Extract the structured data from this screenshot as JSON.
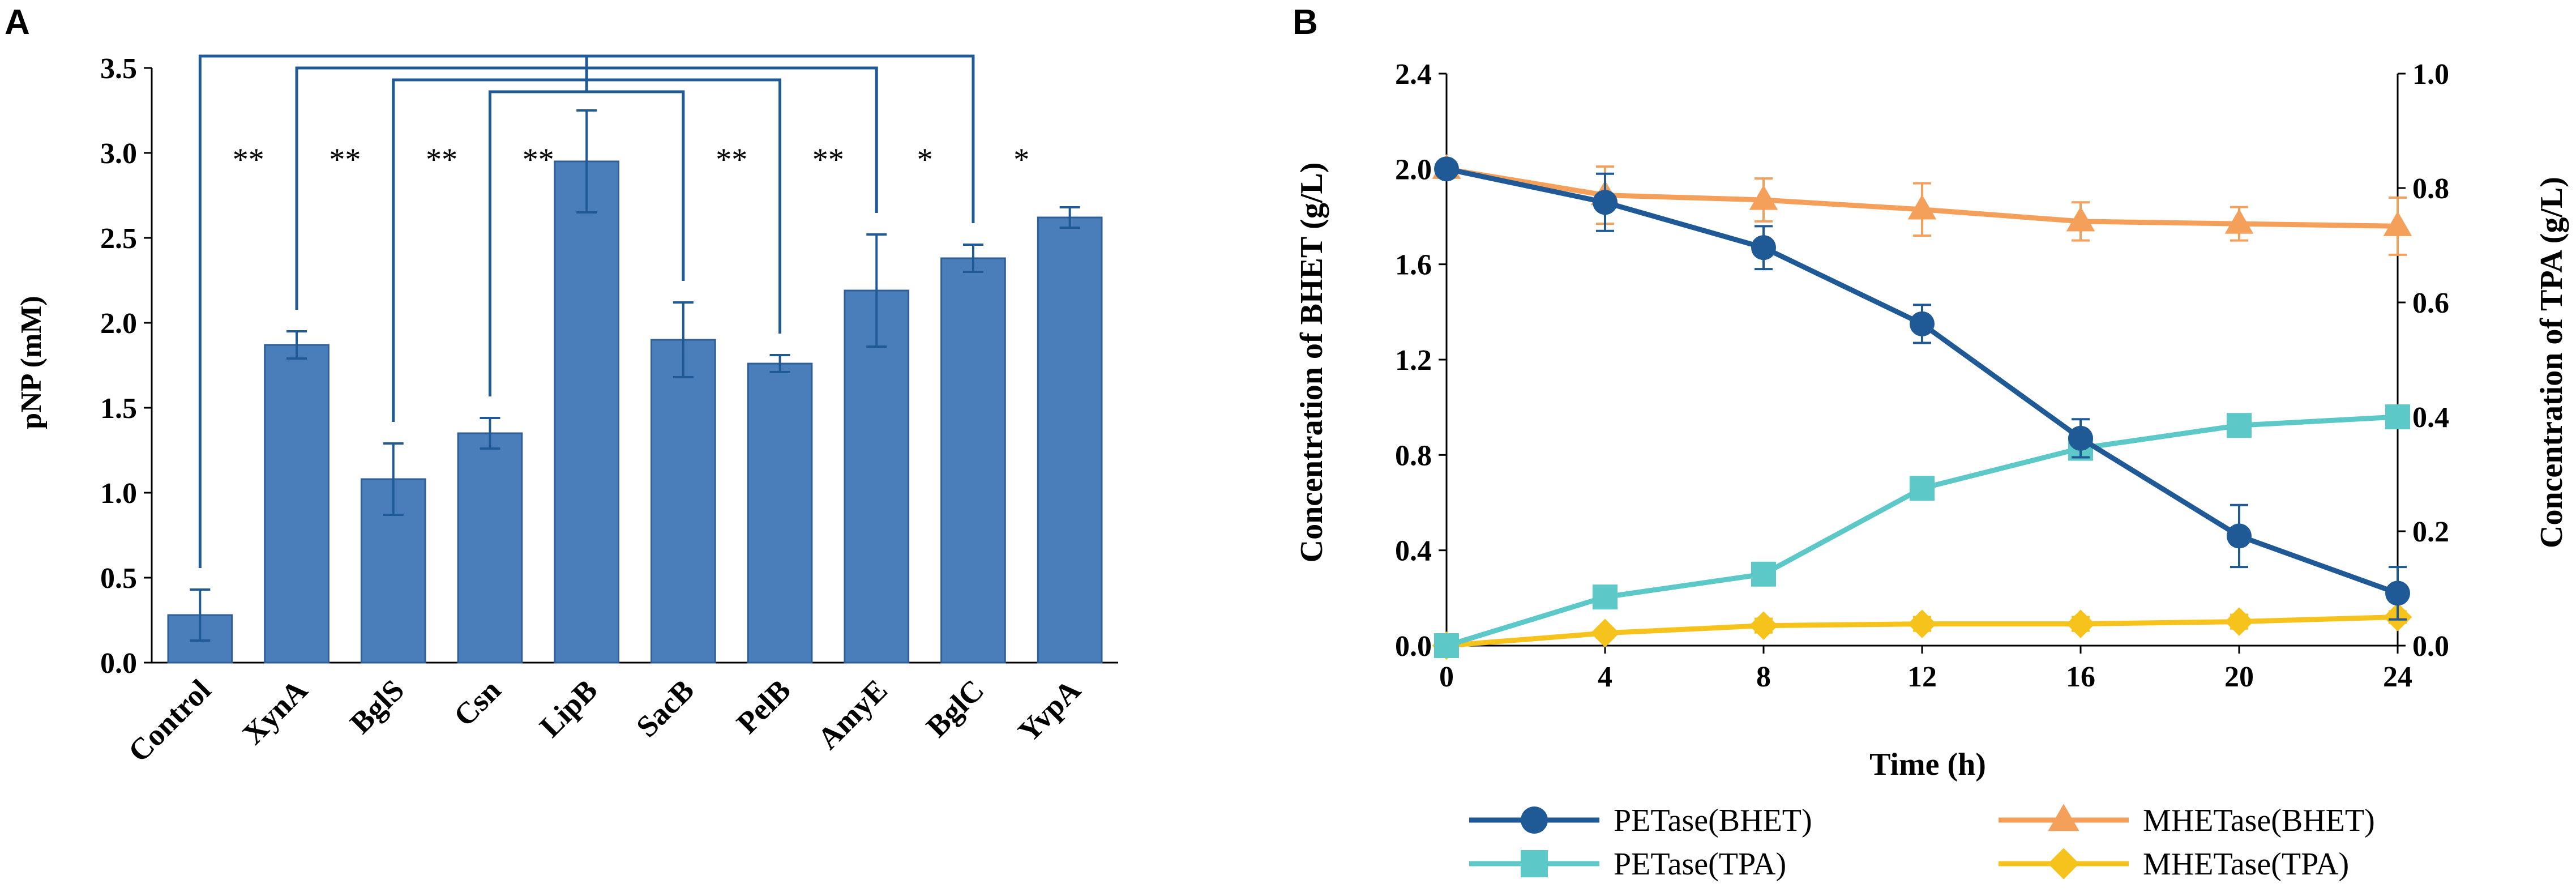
{
  "chart_data": [
    {
      "panel": "A",
      "type": "bar",
      "title": "",
      "xlabel": "",
      "ylabel": "pNP (mM)",
      "ylim": [
        0,
        3.5
      ],
      "yticks": [
        "0.0",
        "0.5",
        "1.0",
        "1.5",
        "2.0",
        "2.5",
        "3.0",
        "3.5"
      ],
      "categories": [
        "Control",
        "XynA",
        "BglS",
        "Csn",
        "LipB",
        "SacB",
        "PelB",
        "AmyE",
        "BglC",
        "YvpA"
      ],
      "values": [
        0.28,
        1.87,
        1.08,
        1.35,
        2.95,
        1.9,
        1.76,
        2.19,
        2.38,
        2.62
      ],
      "errors": [
        0.15,
        0.08,
        0.21,
        0.09,
        0.3,
        0.22,
        0.05,
        0.33,
        0.08,
        0.06
      ],
      "bar_color": "#4A7EBB",
      "significance": [
        {
          "from": "Control",
          "to": "BglC",
          "label": "*",
          "level": 3.57
        },
        {
          "from": "XynA",
          "to": "AmyE",
          "label": "*",
          "level": 3.5
        },
        {
          "from": "BglS",
          "to": "PelB",
          "label": "**",
          "level": 3.43
        },
        {
          "from": "Csn",
          "to": "SacB",
          "label": "**",
          "level": 3.36
        }
      ],
      "star_labels": [
        {
          "between": [
            "Control",
            "XynA"
          ],
          "text": "**"
        },
        {
          "between": [
            "XynA",
            "BglS"
          ],
          "text": "**"
        },
        {
          "between": [
            "BglS",
            "Csn"
          ],
          "text": "**"
        },
        {
          "between": [
            "Csn",
            "LipB"
          ],
          "text": "**"
        },
        {
          "between": [
            "SacB",
            "PelB"
          ],
          "text": "**"
        },
        {
          "between": [
            "PelB",
            "AmyE"
          ],
          "text": "**"
        },
        {
          "between": [
            "AmyE",
            "BglC"
          ],
          "text": "*"
        },
        {
          "between": [
            "BglC",
            "YvpA"
          ],
          "text": "*"
        }
      ]
    },
    {
      "panel": "B",
      "type": "line",
      "title": "",
      "xlabel": "Time (h)",
      "ylabel": "Concentration of BHET (g/L)",
      "y2label": "Concentration of TPA (g/L)",
      "x": [
        0,
        4,
        8,
        12,
        16,
        20,
        24
      ],
      "xticks": [
        "0",
        "4",
        "8",
        "12",
        "16",
        "20",
        "24"
      ],
      "xlim": [
        0,
        24
      ],
      "ylim": [
        0,
        2.4
      ],
      "yticks": [
        "0.0",
        "0.4",
        "0.8",
        "1.2",
        "1.6",
        "2.0",
        "2.4"
      ],
      "y2lim": [
        0,
        1.0
      ],
      "y2ticks": [
        "0.0",
        "0.2",
        "0.4",
        "0.6",
        "0.8",
        "1.0"
      ],
      "legend_position": "bottom",
      "series": [
        {
          "name": "PETase(BHET)",
          "axis": "left",
          "color": "#1F5A96",
          "marker": "circle",
          "values": [
            2.0,
            1.86,
            1.67,
            1.35,
            0.87,
            0.46,
            0.22
          ],
          "errors": [
            0.0,
            0.12,
            0.09,
            0.08,
            0.08,
            0.13,
            0.11
          ]
        },
        {
          "name": "MHETase(BHET)",
          "axis": "left",
          "color": "#F5A05A",
          "marker": "triangle",
          "values": [
            2.0,
            1.89,
            1.87,
            1.83,
            1.78,
            1.77,
            1.76
          ],
          "errors": [
            0.0,
            0.12,
            0.09,
            0.11,
            0.08,
            0.07,
            0.12
          ]
        },
        {
          "name": "PETase(TPA)",
          "axis": "right",
          "color": "#5CC8C8",
          "marker": "square",
          "values": [
            0.0,
            0.085,
            0.125,
            0.275,
            0.345,
            0.385,
            0.4
          ],
          "errors": [
            0.0,
            0.0,
            0.0,
            0.0,
            0.015,
            0.0,
            0.0
          ]
        },
        {
          "name": "MHETase(TPA)",
          "axis": "right",
          "color": "#F6C31C",
          "marker": "diamond",
          "values": [
            0.0,
            0.022,
            0.035,
            0.038,
            0.038,
            0.042,
            0.05
          ],
          "errors": [
            0.0,
            0.008,
            0.012,
            0.012,
            0.012,
            0.012,
            0.01
          ]
        }
      ]
    }
  ]
}
